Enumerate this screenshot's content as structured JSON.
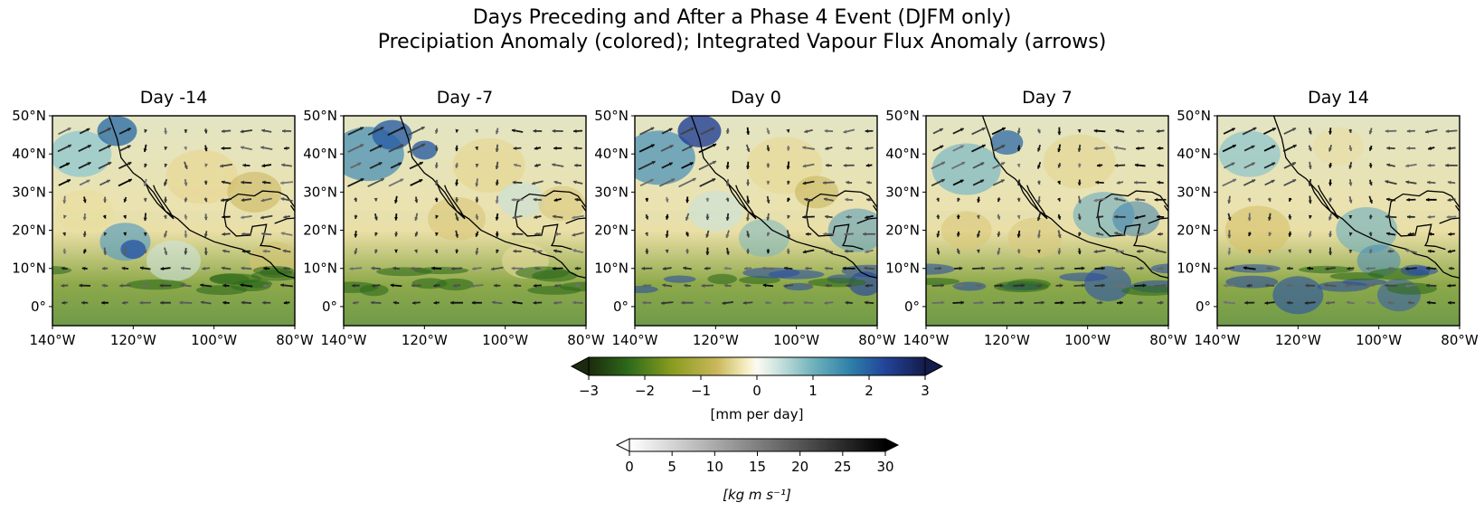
{
  "figure": {
    "title_line1": "Days Preceding and After a Phase 4 Event (DJFM only)",
    "title_line2": "Precipiation Anomaly (colored); Integrated Vapour Flux Anomaly (arrows)"
  },
  "panels": [
    {
      "title": "Day -14"
    },
    {
      "title": "Day -7"
    },
    {
      "title": "Day 0"
    },
    {
      "title": "Day 7"
    },
    {
      "title": "Day 14"
    }
  ],
  "axes": {
    "lat_ticks": [
      "50°N",
      "40°N",
      "30°N",
      "20°N",
      "10°N",
      "0°"
    ],
    "lon_ticks": [
      "140°W",
      "120°W",
      "100°W",
      "80°W"
    ]
  },
  "colorbar_precip": {
    "ticks": [
      "−3",
      "−2",
      "−1",
      "0",
      "1",
      "2",
      "3"
    ],
    "label": "[mm per day]",
    "colors": [
      "#1c2a0d",
      "#2e6b1b",
      "#8a9d1f",
      "#c9b75a",
      "#f6efc4",
      "#fbfaf3",
      "#cde4de",
      "#6eb1bb",
      "#2d7fa8",
      "#23449a",
      "#141c4a"
    ]
  },
  "colorbar_flux": {
    "ticks": [
      "0",
      "5",
      "10",
      "15",
      "20",
      "25",
      "30"
    ],
    "label": "[kg m s⁻¹]",
    "colors": [
      "#ffffff",
      "#000000"
    ]
  }
}
